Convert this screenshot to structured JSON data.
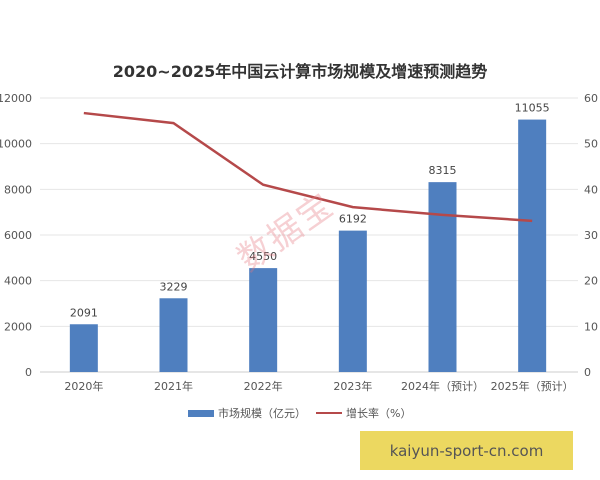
{
  "chart_data": {
    "type": "bar+line",
    "title": "2020~2025年中国云计算市场规模及增速预测趋势",
    "categories": [
      "2020年",
      "2021年",
      "2022年",
      "2023年",
      "2024年（预计）",
      "2025年（预计）"
    ],
    "series": [
      {
        "name": "市场规模（亿元）",
        "type": "bar",
        "axis": "left",
        "values": [
          2091,
          3229,
          4550,
          6192,
          8315,
          11055
        ],
        "color": "#4f7fbf"
      },
      {
        "name": "增长率（%）",
        "type": "line",
        "axis": "right",
        "values": [
          56.7,
          54.5,
          41.0,
          36.1,
          34.4,
          33.1
        ],
        "color": "#b5494a"
      }
    ],
    "ylim_left": [
      0,
      12000
    ],
    "yticks_left": [
      0,
      2000,
      4000,
      6000,
      8000,
      10000,
      12000
    ],
    "ylim_right": [
      0,
      60
    ],
    "yticks_right": [
      0,
      10,
      20,
      30,
      40,
      50,
      60
    ],
    "grid": true,
    "legend": "bottom"
  },
  "watermark": "数据宝",
  "site_label": "kaiyun-sport-cn.com"
}
